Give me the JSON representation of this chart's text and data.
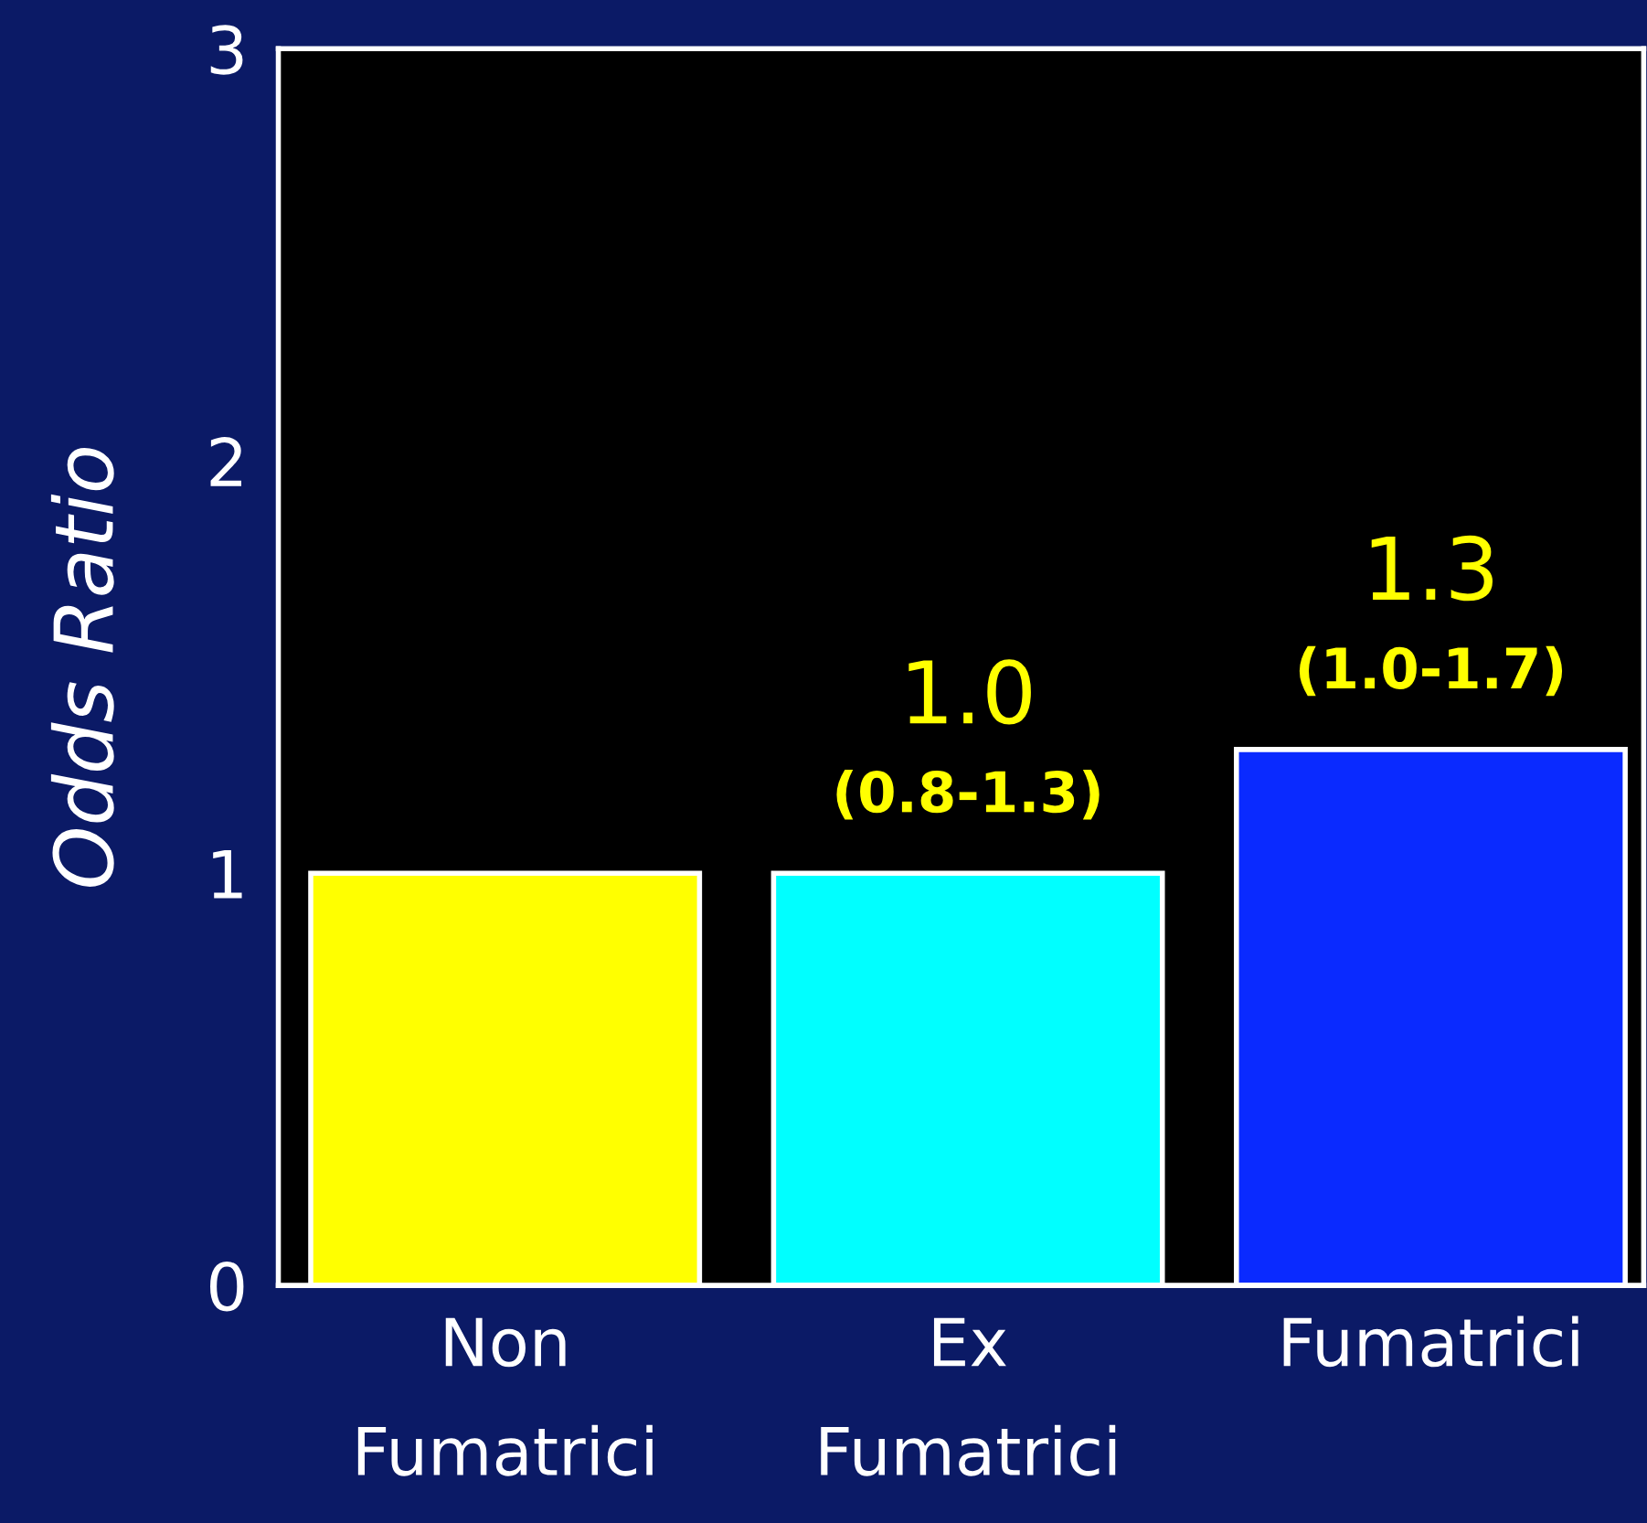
{
  "chart_data": {
    "type": "bar",
    "ylabel": "Odds Ratio",
    "categories": [
      "Non\nFumatrici",
      "Ex\nFumatrici",
      "Fumatrici"
    ],
    "values": [
      1.0,
      1.0,
      1.3
    ],
    "colors": [
      "#ffff00",
      "#00ffff",
      "#0a2aff"
    ],
    "value_labels": [
      null,
      "1.0\n(0.8-1.3)",
      "1.3\n(1.0-1.7)"
    ],
    "ylim": [
      0,
      3
    ],
    "yticks": [
      0,
      1,
      2,
      3
    ],
    "grid": false,
    "legend": false
  }
}
